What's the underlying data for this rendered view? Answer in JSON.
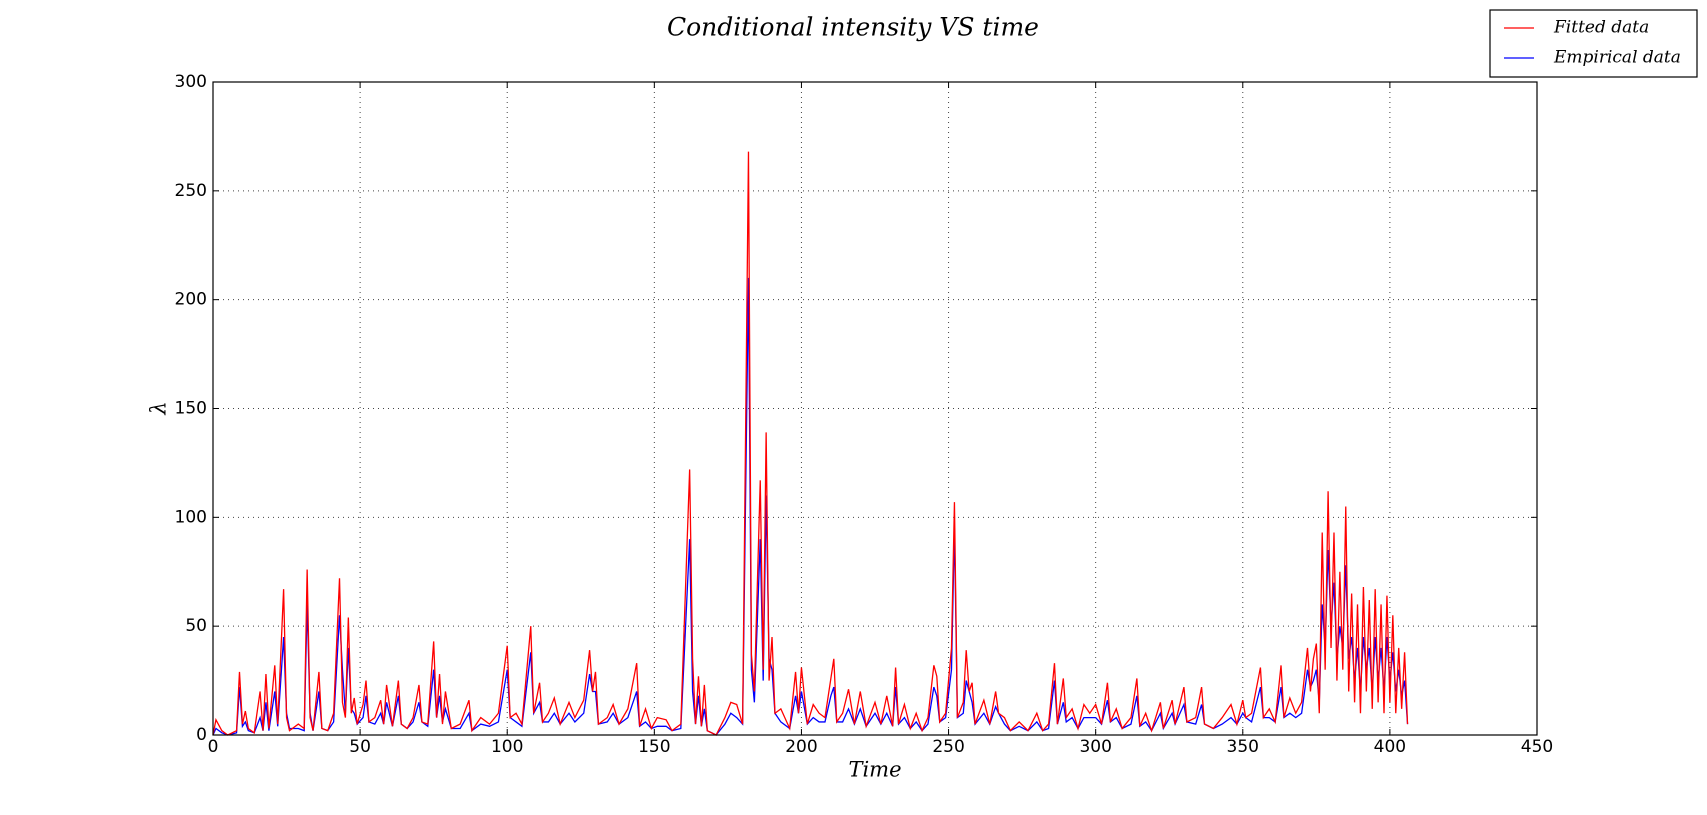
{
  "chart_data": {
    "type": "line",
    "title": "Conditional intensity VS time",
    "xlabel": "Time",
    "ylabel": "λ",
    "x": [
      0,
      1,
      3,
      5,
      8,
      9,
      10,
      11,
      12,
      14,
      16,
      17,
      18,
      19,
      21,
      22,
      24,
      25,
      26,
      29,
      31,
      32,
      33,
      34,
      36,
      37,
      39,
      41,
      43,
      44,
      45,
      46,
      47,
      48,
      49,
      51,
      52,
      53,
      55,
      57,
      58,
      59,
      61,
      63,
      64,
      66,
      68,
      70,
      71,
      73,
      75,
      76,
      77,
      78,
      79,
      81,
      84,
      87,
      88,
      91,
      94,
      97,
      100,
      101,
      103,
      105,
      108,
      109,
      111,
      112,
      114,
      116,
      118,
      121,
      123,
      126,
      128,
      129,
      130,
      131,
      134,
      136,
      138,
      141,
      144,
      145,
      147,
      149,
      151,
      154,
      156,
      159,
      162,
      163,
      164,
      165,
      166,
      167,
      168,
      171,
      174,
      176,
      178,
      180,
      182,
      183,
      184,
      186,
      187,
      188,
      189,
      190,
      191,
      193,
      196,
      198,
      199,
      200,
      202,
      204,
      206,
      208,
      210,
      211,
      212,
      214,
      216,
      218,
      220,
      222,
      225,
      227,
      229,
      231,
      232,
      233,
      235,
      237,
      239,
      241,
      243,
      245,
      246,
      247,
      249,
      251,
      252,
      253,
      255,
      256,
      257,
      258,
      259,
      262,
      264,
      266,
      267,
      269,
      271,
      274,
      277,
      280,
      282,
      284,
      286,
      287,
      289,
      290,
      292,
      294,
      296,
      298,
      300,
      302,
      304,
      305,
      307,
      309,
      312,
      314,
      315,
      317,
      319,
      322,
      323,
      326,
      327,
      330,
      331,
      334,
      336,
      337,
      340,
      343,
      346,
      348,
      350,
      351,
      353,
      356,
      357,
      359,
      361,
      363,
      364,
      366,
      368,
      370,
      372,
      373,
      374,
      375,
      376,
      377,
      378,
      379,
      380,
      381,
      382,
      383,
      384,
      385,
      386,
      387,
      388,
      389,
      390,
      391,
      392,
      393,
      394,
      395,
      396,
      397,
      398,
      399,
      400,
      401,
      402,
      403,
      404,
      405,
      406
    ],
    "series": [
      {
        "name": "Fitted data",
        "color": "#ff0000",
        "values": [
          0,
          7,
          2,
          0,
          2,
          29,
          5,
          11,
          3,
          1,
          20,
          2,
          28,
          3,
          32,
          5,
          67,
          8,
          2,
          5,
          3,
          76,
          8,
          2,
          29,
          3,
          2,
          10,
          72,
          15,
          8,
          54,
          10,
          17,
          5,
          14,
          25,
          6,
          8,
          16,
          5,
          23,
          4,
          25,
          5,
          3,
          8,
          23,
          6,
          5,
          43,
          8,
          28,
          5,
          20,
          3,
          5,
          16,
          2,
          8,
          5,
          10,
          41,
          8,
          10,
          5,
          50,
          10,
          24,
          6,
          10,
          17,
          5,
          15,
          8,
          16,
          39,
          20,
          29,
          5,
          8,
          14,
          5,
          12,
          33,
          4,
          12,
          3,
          8,
          7,
          2,
          5,
          122,
          35,
          5,
          27,
          4,
          23,
          2,
          0,
          8,
          15,
          14,
          5,
          268,
          37,
          20,
          117,
          30,
          139,
          25,
          45,
          10,
          12,
          3,
          29,
          10,
          31,
          5,
          14,
          10,
          8,
          26,
          35,
          6,
          10,
          21,
          5,
          20,
          4,
          15,
          5,
          18,
          4,
          31,
          5,
          14,
          3,
          10,
          2,
          8,
          32,
          27,
          6,
          10,
          40,
          107,
          8,
          15,
          39,
          20,
          24,
          5,
          16,
          5,
          20,
          10,
          8,
          2,
          6,
          2,
          10,
          2,
          5,
          33,
          5,
          26,
          8,
          12,
          3,
          14,
          10,
          14,
          5,
          24,
          6,
          12,
          3,
          8,
          26,
          4,
          10,
          2,
          15,
          3,
          16,
          5,
          22,
          6,
          8,
          22,
          5,
          3,
          8,
          14,
          5,
          16,
          8,
          10,
          31,
          8,
          12,
          6,
          32,
          8,
          17,
          10,
          15,
          40,
          20,
          35,
          42,
          10,
          93,
          30,
          112,
          40,
          93,
          25,
          75,
          30,
          105,
          20,
          65,
          15,
          60,
          10,
          68,
          20,
          62,
          12,
          67,
          15,
          60,
          10,
          64,
          15,
          55,
          10,
          40,
          12,
          38,
          5
        ]
      },
      {
        "name": "Empirical data",
        "color": "#0000ff",
        "values": [
          0,
          3,
          1,
          0,
          1,
          22,
          4,
          6,
          2,
          1,
          8,
          2,
          15,
          2,
          20,
          4,
          45,
          10,
          3,
          3,
          2,
          60,
          10,
          2,
          20,
          3,
          2,
          6,
          55,
          30,
          10,
          40,
          12,
          10,
          5,
          8,
          18,
          6,
          5,
          10,
          5,
          15,
          4,
          18,
          5,
          3,
          6,
          15,
          6,
          4,
          30,
          8,
          18,
          6,
          12,
          3,
          3,
          10,
          2,
          5,
          4,
          6,
          30,
          8,
          6,
          4,
          38,
          10,
          15,
          6,
          6,
          10,
          5,
          10,
          6,
          10,
          28,
          20,
          20,
          5,
          6,
          10,
          5,
          8,
          20,
          4,
          6,
          3,
          4,
          4,
          2,
          3,
          90,
          20,
          5,
          18,
          4,
          12,
          2,
          0,
          5,
          10,
          8,
          5,
          210,
          30,
          15,
          90,
          25,
          110,
          35,
          30,
          10,
          6,
          3,
          18,
          10,
          20,
          5,
          8,
          6,
          6,
          18,
          22,
          6,
          6,
          12,
          5,
          12,
          4,
          10,
          5,
          10,
          4,
          22,
          5,
          8,
          3,
          6,
          2,
          5,
          22,
          18,
          6,
          8,
          30,
          95,
          8,
          10,
          25,
          20,
          15,
          5,
          10,
          5,
          13,
          10,
          5,
          2,
          4,
          2,
          6,
          2,
          3,
          25,
          5,
          15,
          6,
          8,
          3,
          8,
          8,
          8,
          5,
          16,
          6,
          8,
          3,
          5,
          18,
          4,
          6,
          2,
          10,
          3,
          10,
          5,
          14,
          6,
          5,
          14,
          5,
          3,
          5,
          8,
          5,
          10,
          8,
          6,
          22,
          8,
          8,
          6,
          22,
          8,
          10,
          8,
          10,
          30,
          22,
          25,
          30,
          15,
          60,
          40,
          85,
          50,
          70,
          35,
          50,
          40,
          78,
          35,
          45,
          25,
          40,
          20,
          45,
          30,
          40,
          20,
          45,
          25,
          40,
          20,
          45,
          25,
          38,
          20,
          30,
          18,
          25,
          5
        ]
      }
    ],
    "xlim": [
      0,
      450
    ],
    "ylim": [
      0,
      300
    ],
    "xticks": [
      0,
      50,
      100,
      150,
      200,
      250,
      300,
      350,
      400,
      450
    ],
    "yticks": [
      0,
      50,
      100,
      150,
      200,
      250,
      300
    ],
    "grid": true,
    "legend": "upper right"
  }
}
